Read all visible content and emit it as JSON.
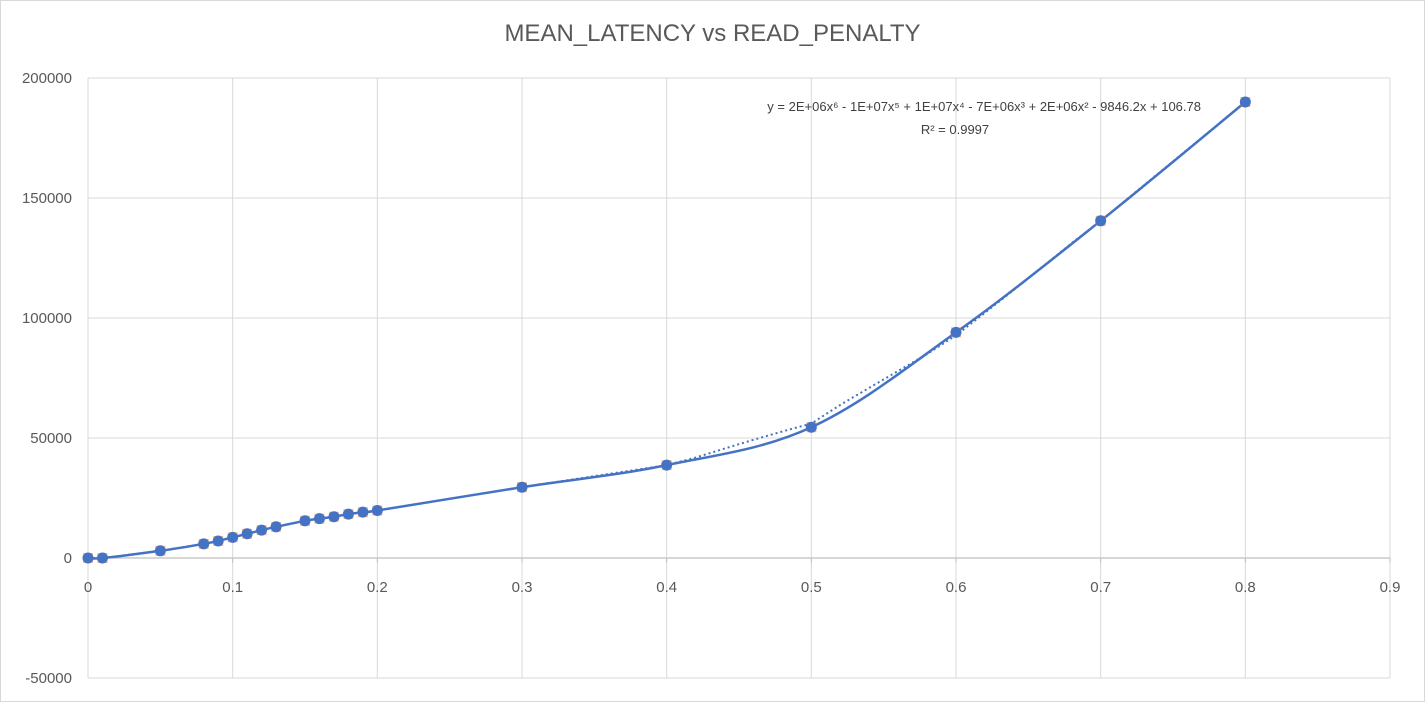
{
  "chart_data": {
    "type": "scatter",
    "title": "MEAN_LATENCY vs READ_PENALTY",
    "xlabel": "",
    "ylabel": "",
    "xlim": [
      0,
      0.9
    ],
    "ylim": [
      -50000,
      200000
    ],
    "x_ticks": [
      0,
      0.1,
      0.2,
      0.3,
      0.4,
      0.5,
      0.6,
      0.7,
      0.8,
      0.9
    ],
    "x_tick_labels": [
      "0",
      "0.1",
      "0.2",
      "0.3",
      "0.4",
      "0.5",
      "0.6",
      "0.7",
      "0.8",
      "0.9"
    ],
    "y_ticks": [
      -50000,
      0,
      50000,
      100000,
      150000,
      200000
    ],
    "y_tick_labels": [
      "-50000",
      "0",
      "50000",
      "100000",
      "150000",
      "200000"
    ],
    "grid": true,
    "legend": "none",
    "series": [
      {
        "color": "#4472c4",
        "marker_color": "#4472c4",
        "marker_outline": "#ed7d31",
        "smooth_line": true,
        "x": [
          0,
          0.01,
          0.05,
          0.08,
          0.09,
          0.1,
          0.11,
          0.12,
          0.13,
          0.15,
          0.16,
          0.17,
          0.18,
          0.19,
          0.2,
          0.3,
          0.4,
          0.5,
          0.6,
          0.7,
          0.8
        ],
        "y": [
          0,
          0,
          3000,
          5900,
          7100,
          8600,
          10100,
          11600,
          13000,
          15500,
          16400,
          17200,
          18300,
          19100,
          19800,
          29500,
          38700,
          54500,
          94000,
          140500,
          190000
        ]
      }
    ],
    "trendline": {
      "type": "polynomial",
      "order": 6,
      "style": "dotted",
      "color": "#4472c4",
      "equation": "y = 2E+06x⁶ - 1E+07x⁵ + 1E+07x⁴ - 7E+06x³ + 2E+06x² - 9846.2x + 106.78",
      "r_squared": "R² = 0.9997"
    }
  }
}
